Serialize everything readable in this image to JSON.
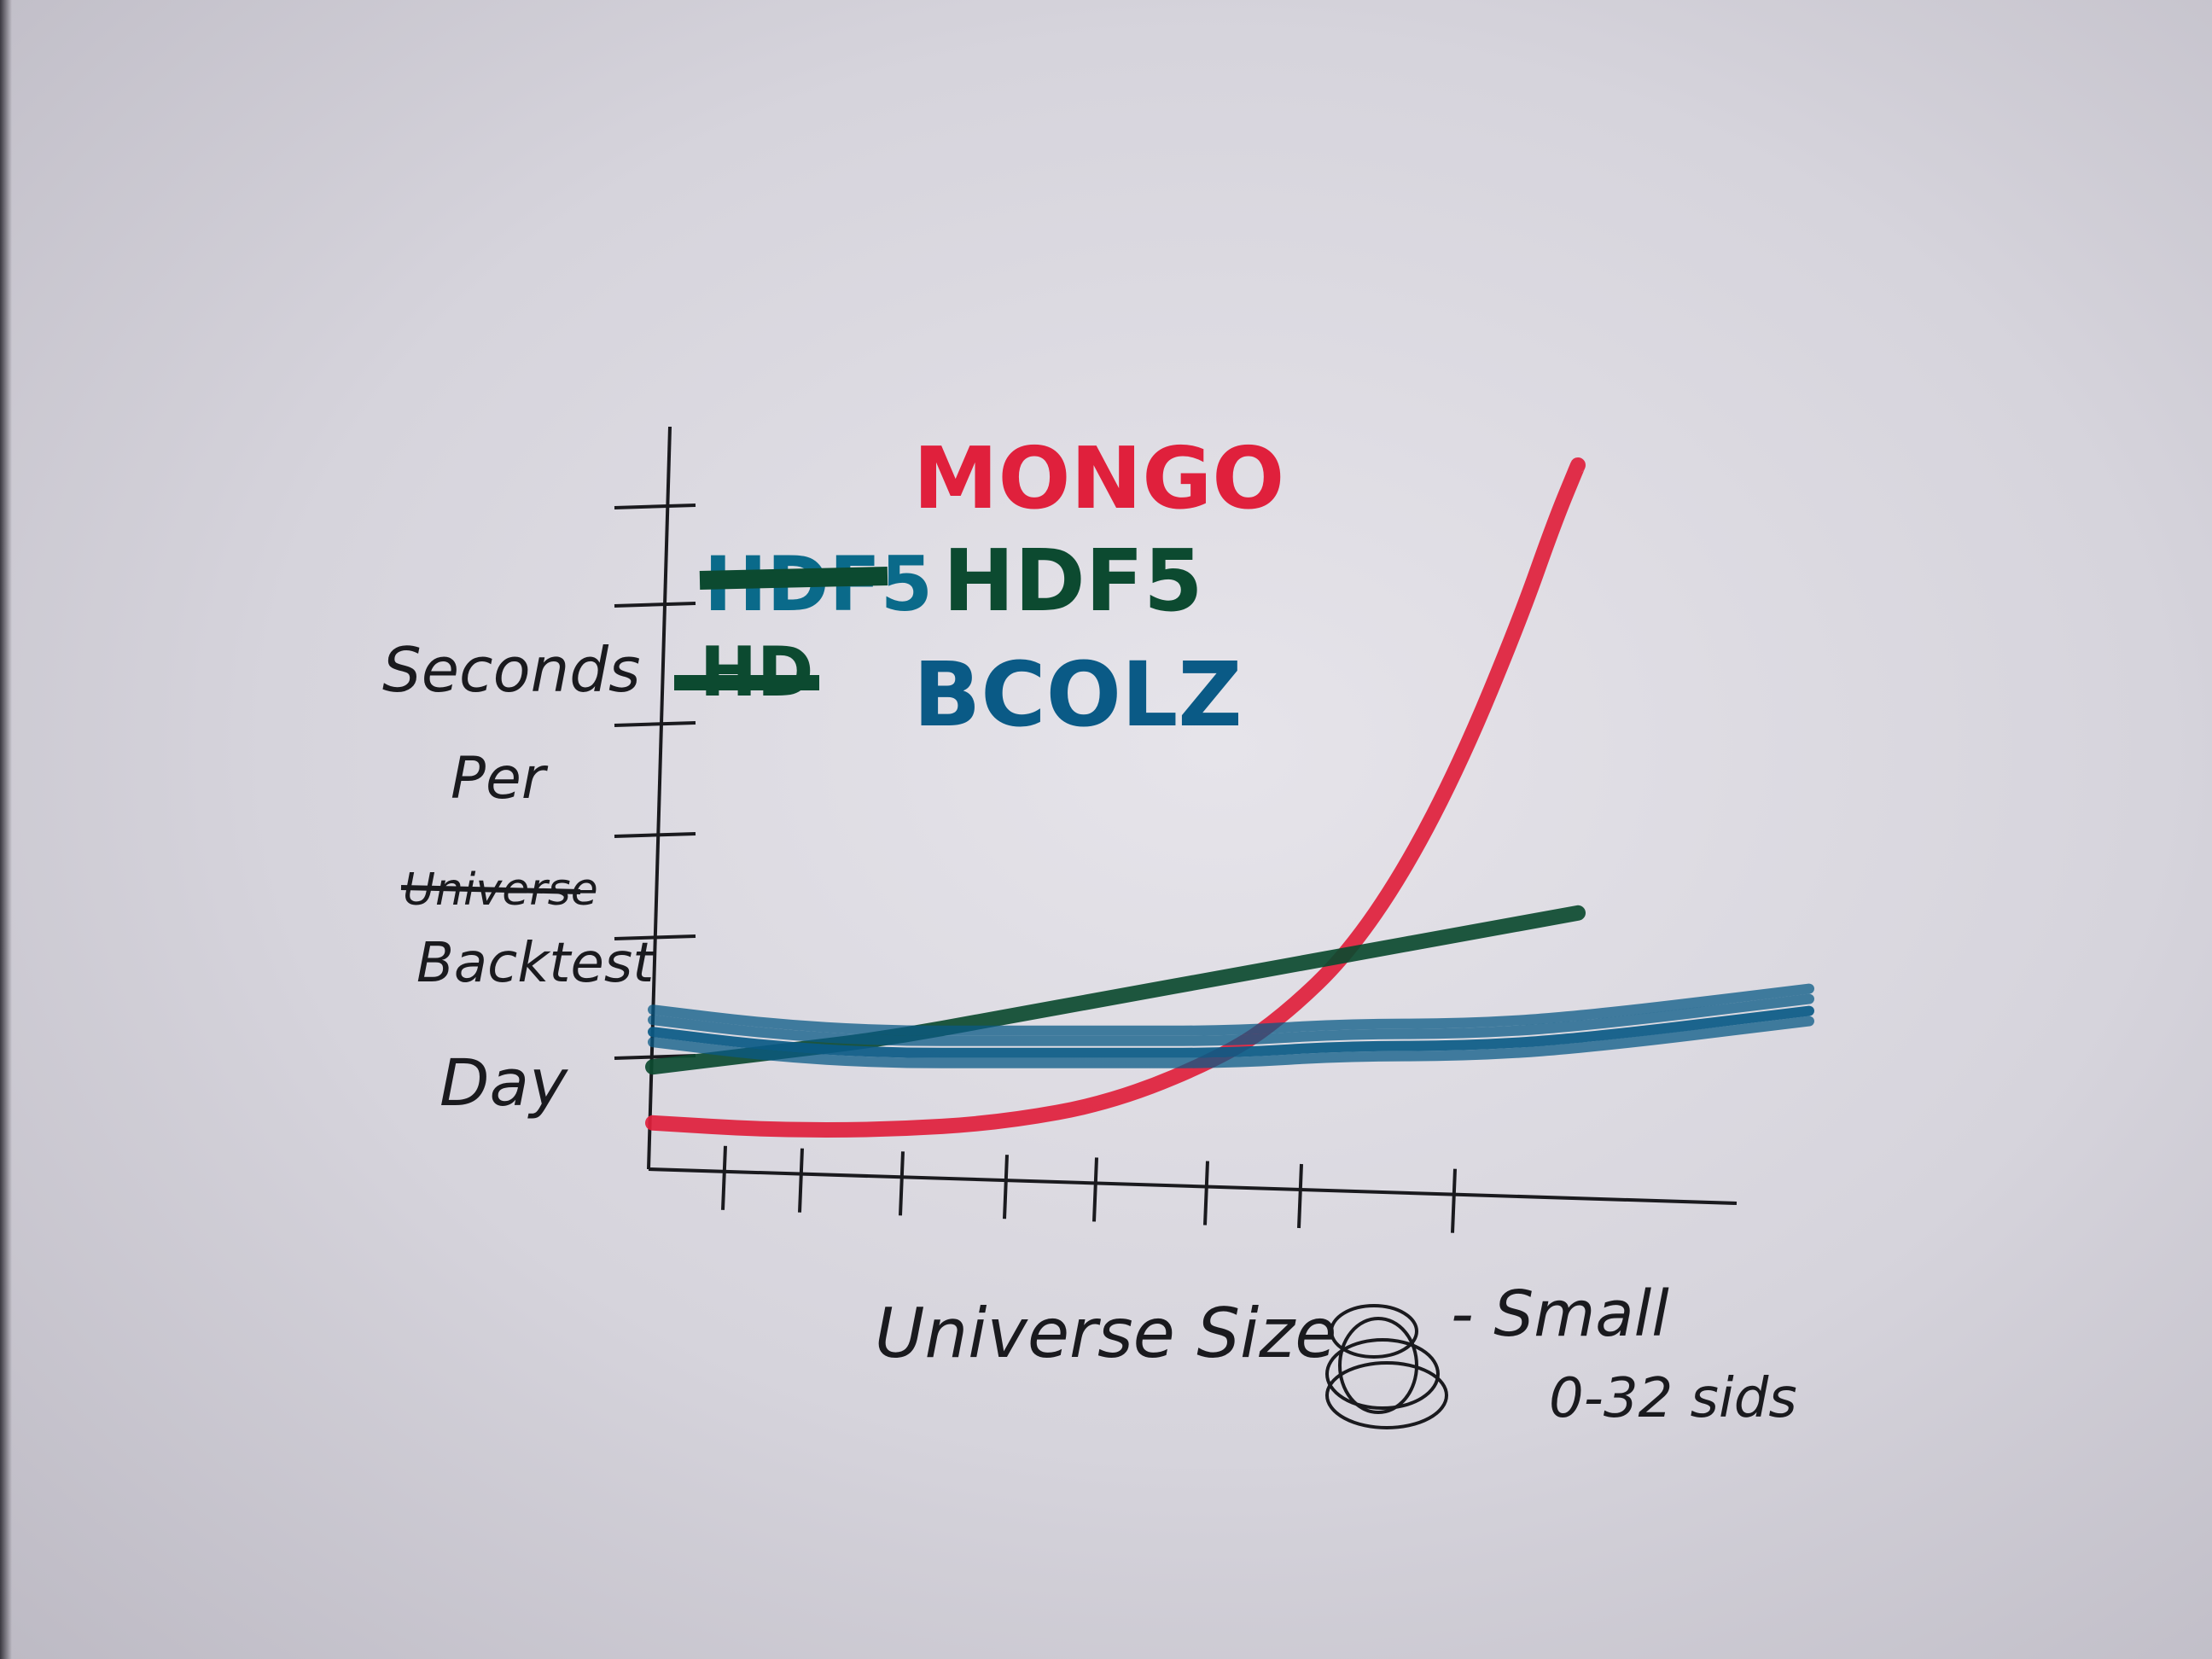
{
  "chart_data": {
    "type": "line",
    "ylabel": "Seconds Per Universe Backtest Day",
    "ylabel_lines": [
      "Seconds",
      "Per",
      "Universe",
      "Backtest",
      "Day"
    ],
    "ylabel_struck": [
      "Universe"
    ],
    "xlabel": "Universe Size",
    "legend_placement": "top-left",
    "legend": [
      {
        "name": "MONGO",
        "color": "#e0203c"
      },
      {
        "name": "HDF5",
        "color": "#0c4a30"
      },
      {
        "name": "BCOLZ",
        "color": "#0a5a86"
      }
    ],
    "legend_struck": [
      {
        "text": "HDF5",
        "color": "#0a6a8a"
      },
      {
        "text": "HD",
        "color": "#0c4a30"
      }
    ],
    "x_tick_count": 8,
    "y_tick_count": 6,
    "xlim": [
      0,
      1
    ],
    "ylim": [
      0,
      1
    ],
    "series": [
      {
        "name": "MONGO",
        "color": "#e0203c",
        "x": [
          0.0,
          0.1,
          0.2,
          0.3,
          0.4,
          0.5,
          0.55,
          0.6,
          0.65,
          0.7,
          0.75,
          0.78,
          0.8
        ],
        "y": [
          0.06,
          0.05,
          0.05,
          0.06,
          0.09,
          0.16,
          0.22,
          0.3,
          0.42,
          0.58,
          0.78,
          0.92,
          1.0
        ]
      },
      {
        "name": "HDF5",
        "color": "#0c4a30",
        "x": [
          0.0,
          0.1,
          0.2,
          0.3,
          0.4,
          0.5,
          0.6,
          0.7,
          0.8
        ],
        "y": [
          0.14,
          0.16,
          0.18,
          0.21,
          0.24,
          0.27,
          0.3,
          0.33,
          0.36
        ]
      },
      {
        "name": "BCOLZ",
        "color": "#0a5a86",
        "x": [
          0.0,
          0.1,
          0.2,
          0.3,
          0.4,
          0.5,
          0.6,
          0.7,
          0.8,
          1.0
        ],
        "y": [
          0.19,
          0.17,
          0.16,
          0.16,
          0.16,
          0.16,
          0.17,
          0.17,
          0.18,
          0.22
        ]
      }
    ],
    "annotation": {
      "text": "- Small",
      "sub": "0-32 sids"
    }
  }
}
